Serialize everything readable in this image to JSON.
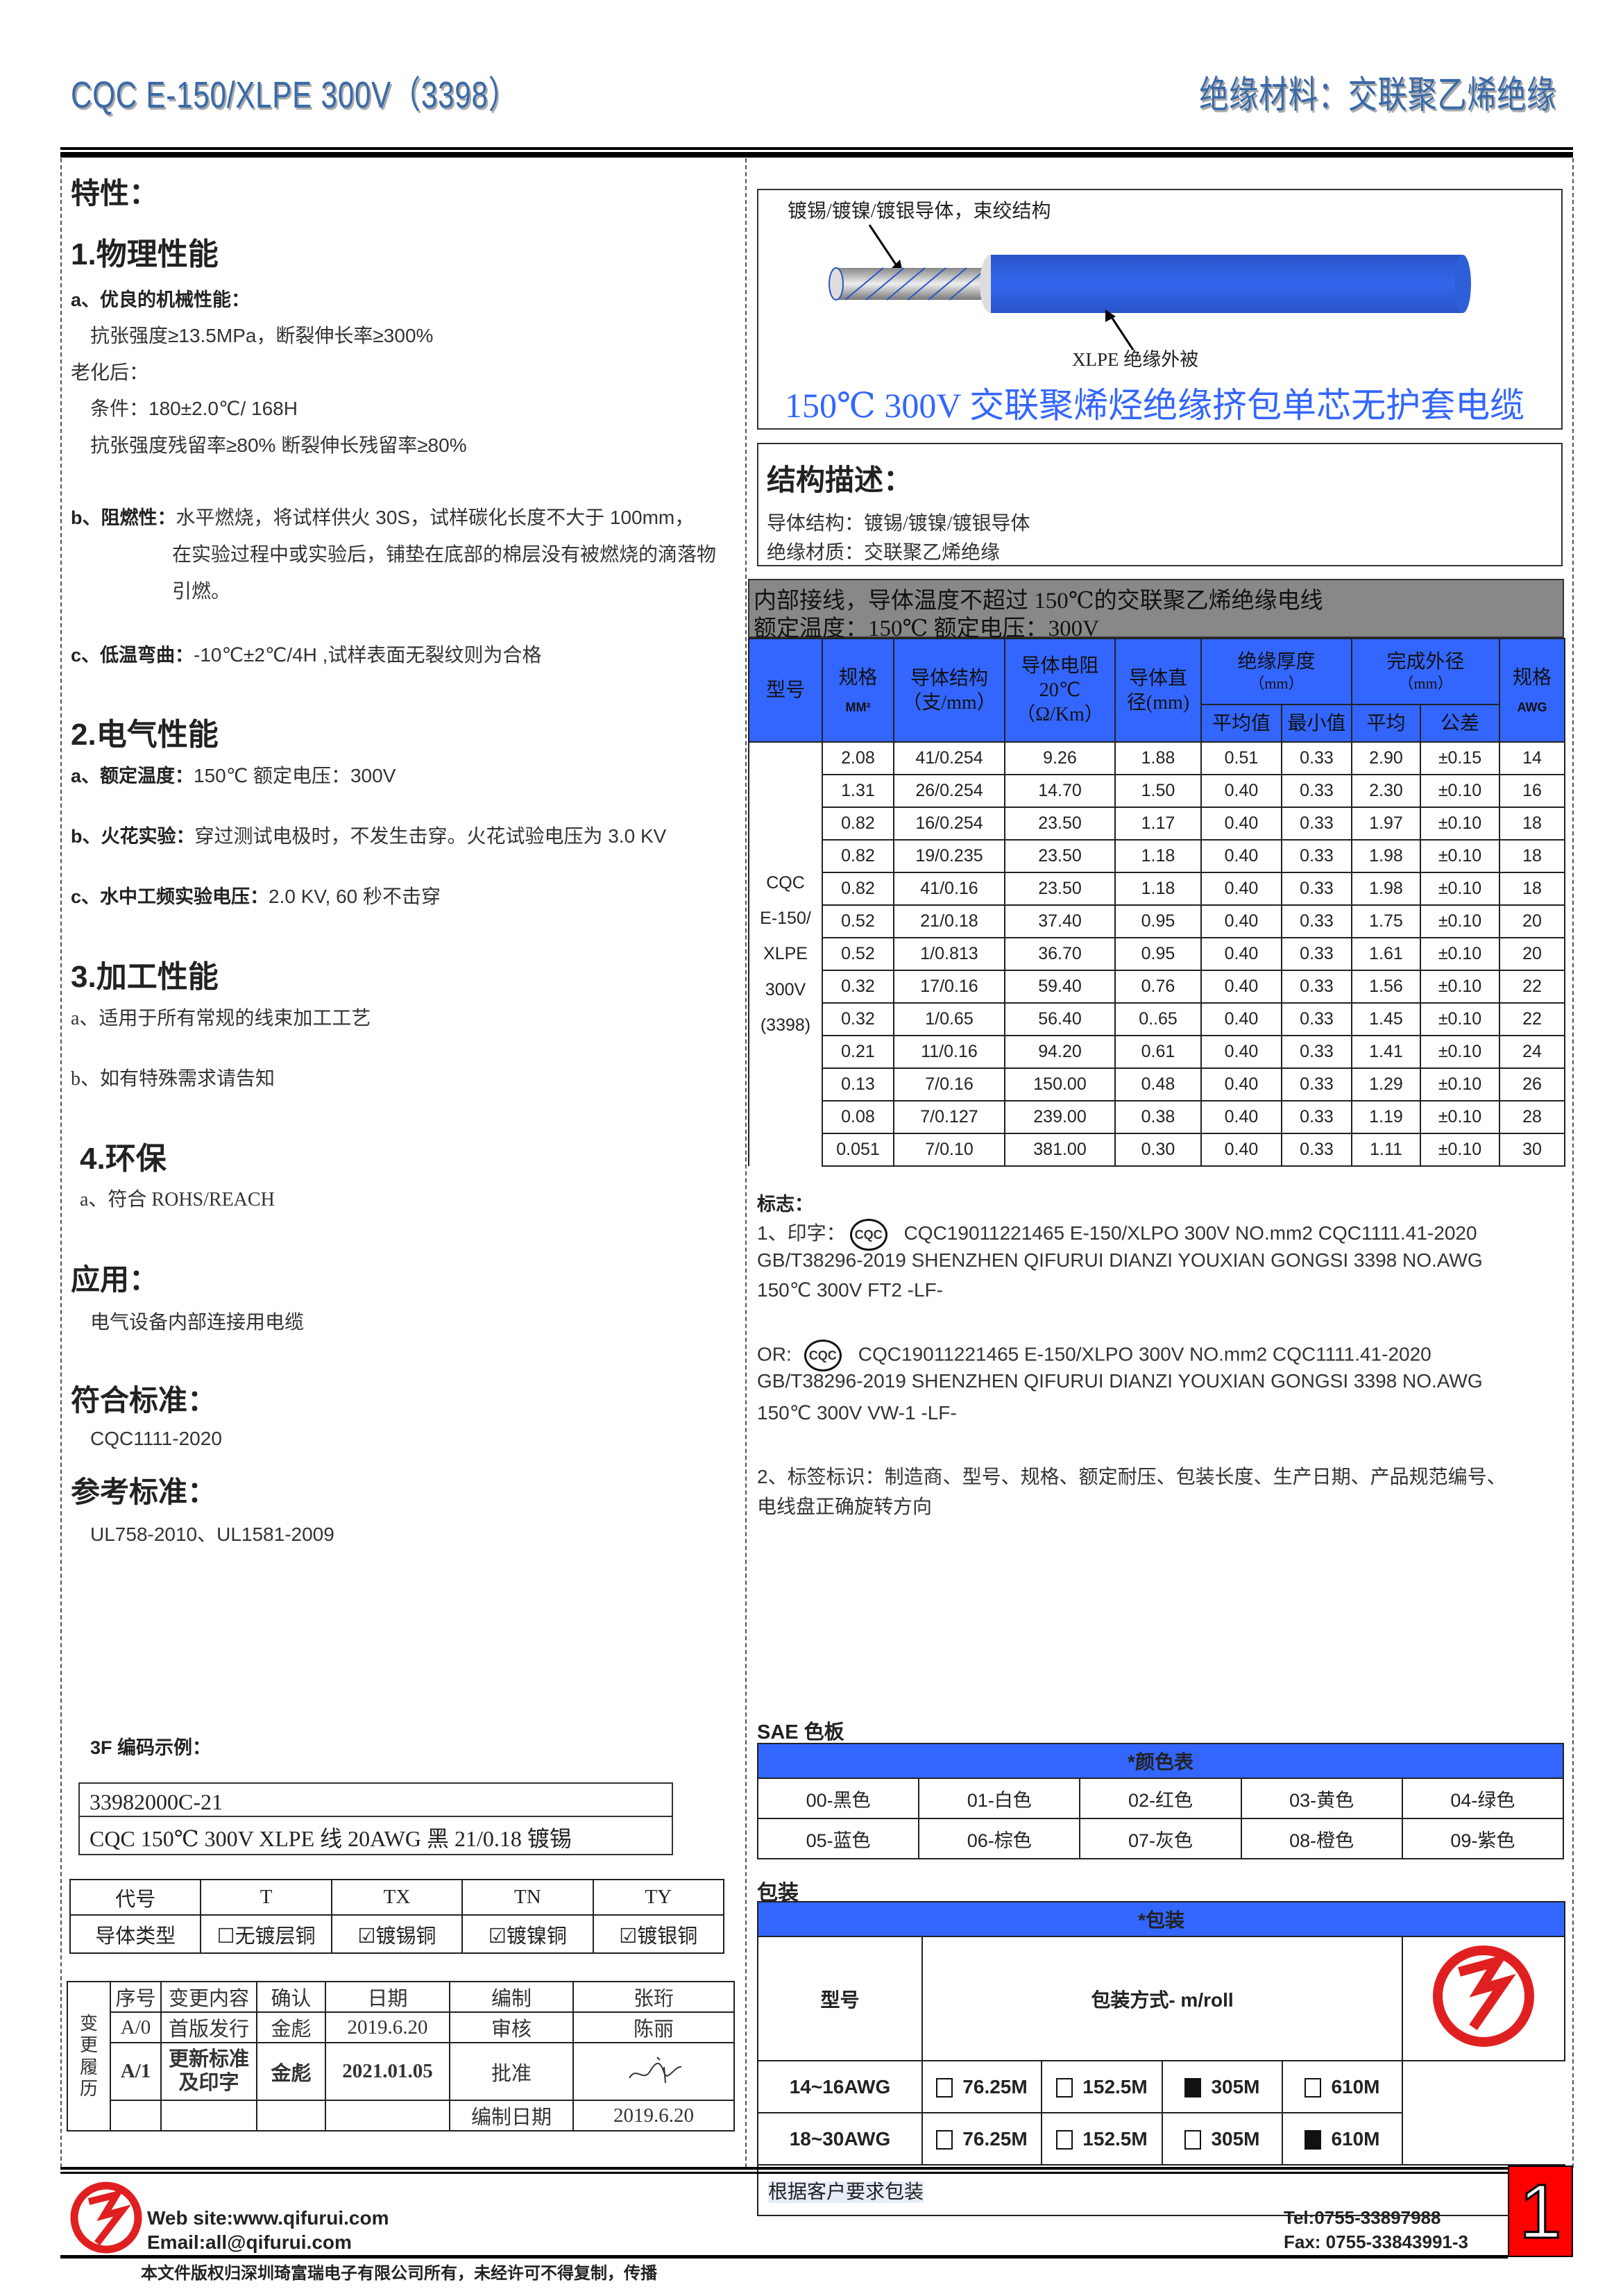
{
  "header": {
    "title": "CQC E-150/XLPE 300V（3398）",
    "category": "绝缘材料：交联聚乙烯绝缘"
  },
  "features": {
    "heading": "特性：",
    "physical": {
      "title": "1.物理性能",
      "a_label": "a、优良的机械性能：",
      "a_line1": "抗张强度≥13.5MPa，断裂伸长率≥300%",
      "aging_label": "老化后：",
      "aging_cond": "条件：180±2.0℃/ 168H",
      "aging_result": "抗张强度残留率≥80%  断裂伸长残留率≥80%",
      "b_label": "b、阻燃性：",
      "b_line1": "水平燃烧，将试样供火 30S，试样碳化长度不大于 100mm，",
      "b_line2": "在实验过程中或实验后，铺垫在底部的棉层没有被燃烧的滴落物",
      "b_line3": "引燃。",
      "c_label": "c、低温弯曲：",
      "c_text": "-10℃±2℃/4H ,试样表面无裂纹则为合格"
    },
    "electrical": {
      "title": "2.电气性能",
      "a_label": "a、额定温度：",
      "a_text": "150℃    额定电压：300V",
      "b_label": "b、火花实验：",
      "b_text": "穿过测试电极时，不发生击穿。火花试验电压为 3.0 KV",
      "c_label": "c、水中工频实验电压：",
      "c_text": "2.0 KV, 60 秒不击穿"
    },
    "processing": {
      "title": "3.加工性能",
      "a": "a、适用于所有常规的线束加工工艺",
      "b": "b、如有特殊需求请告知"
    },
    "env": {
      "title": "4.环保",
      "a": "a、符合 ROHS/REACH"
    }
  },
  "application": {
    "title": "应用：",
    "text": "电气设备内部连接用电缆"
  },
  "standard": {
    "title": "符合标准：",
    "text": "CQC1111-2020"
  },
  "reference": {
    "title": "参考标准：",
    "text": "UL758-2010、UL1581-2009"
  },
  "code_example": {
    "title": "3F 编码示例：",
    "code": "33982000C-21",
    "desc": "CQC 150℃  300V XLPE 线    20AWG  黑  21/0.18 镀锡"
  },
  "conductor_table": {
    "headers": [
      "代号",
      "T",
      "TX",
      "TN",
      "TY"
    ],
    "row_label": "导体类型",
    "cells": [
      {
        "label": "无镀层铜",
        "checked": false
      },
      {
        "label": "镀锡铜",
        "checked": true
      },
      {
        "label": "镀镍铜",
        "checked": true
      },
      {
        "label": "镀银铜",
        "checked": true
      }
    ]
  },
  "revision": {
    "side_label": "变更履历",
    "headers": [
      "序号",
      "变更内容",
      "确认",
      "日期",
      "编制",
      "张珩"
    ],
    "row1": [
      "A/0",
      "首版发行",
      "金彪",
      "2019.6.20",
      "审核",
      "陈丽"
    ],
    "row2": [
      "A/1",
      "更新标准及印字",
      "金彪",
      "2021.01.05",
      "批准"
    ],
    "footer_label": "编制日期",
    "footer_value": "2019.6.20"
  },
  "diagram": {
    "conductor_label": "镀锡/镀镍/镀银导体，束绞结构",
    "insulation_label": "XLPE  绝缘外被",
    "title": "150℃  300V 交联聚烯烃绝缘挤包单芯无护套电缆",
    "jacket_color": "#2f5fd8"
  },
  "structure": {
    "title": "结构描述：",
    "conductor": "导体结构：镀锡/镀镍/镀银导体",
    "insulation": "绝缘材质：交联聚乙烯绝缘"
  },
  "spec": {
    "banner1": "内部接线，导体温度不超过 150℃的交联聚乙烯绝缘电线",
    "banner2": "额定温度：150℃  额定电压：300V",
    "h_model": "型号",
    "h_size": "规格",
    "h_size_unit": "MM²",
    "h_struct": "导体结构",
    "h_struct_unit": "（支/mm）",
    "h_res": "导体电阻",
    "h_res_temp": "20℃",
    "h_res_unit": "（Ω/Km）",
    "h_dia": "导体直",
    "h_dia2": "径(mm)",
    "h_ins": "绝缘厚度",
    "h_ins_unit": "（mm）",
    "h_od": "完成外径",
    "h_od_unit": "（mm）",
    "h_awg": "规格",
    "h_awg_unit": "AWG",
    "h_avg": "平均值",
    "h_min": "最小值",
    "h_od_avg": "平均",
    "h_tol": "公差",
    "model_lines": [
      "CQC",
      "E-150/",
      "XLPE",
      "300V",
      "(3398)"
    ],
    "rows": [
      [
        "2.08",
        "41/0.254",
        "9.26",
        "1.88",
        "0.51",
        "0.33",
        "2.90",
        "±0.15",
        "14"
      ],
      [
        "1.31",
        "26/0.254",
        "14.70",
        "1.50",
        "0.40",
        "0.33",
        "2.30",
        "±0.10",
        "16"
      ],
      [
        "0.82",
        "16/0.254",
        "23.50",
        "1.17",
        "0.40",
        "0.33",
        "1.97",
        "±0.10",
        "18"
      ],
      [
        "0.82",
        "19/0.235",
        "23.50",
        "1.18",
        "0.40",
        "0.33",
        "1.98",
        "±0.10",
        "18"
      ],
      [
        "0.82",
        "41/0.16",
        "23.50",
        "1.18",
        "0.40",
        "0.33",
        "1.98",
        "±0.10",
        "18"
      ],
      [
        "0.52",
        "21/0.18",
        "37.40",
        "0.95",
        "0.40",
        "0.33",
        "1.75",
        "±0.10",
        "20"
      ],
      [
        "0.52",
        "1/0.813",
        "36.70",
        "0.95",
        "0.40",
        "0.33",
        "1.61",
        "±0.10",
        "20"
      ],
      [
        "0.32",
        "17/0.16",
        "59.40",
        "0.76",
        "0.40",
        "0.33",
        "1.56",
        "±0.10",
        "22"
      ],
      [
        "0.32",
        "1/0.65",
        "56.40",
        "0..65",
        "0.40",
        "0.33",
        "1.45",
        "±0.10",
        "22"
      ],
      [
        "0.21",
        "11/0.16",
        "94.20",
        "0.61",
        "0.40",
        "0.33",
        "1.41",
        "±0.10",
        "24"
      ],
      [
        "0.13",
        "7/0.16",
        "150.00",
        "0.48",
        "0.40",
        "0.33",
        "1.29",
        "±0.10",
        "26"
      ],
      [
        "0.08",
        "7/0.127",
        "239.00",
        "0.38",
        "0.40",
        "0.33",
        "1.19",
        "±0.10",
        "28"
      ],
      [
        "0.051",
        "7/0.10",
        "381.00",
        "0.30",
        "0.40",
        "0.33",
        "1.11",
        "±0.10",
        "30"
      ]
    ]
  },
  "marking": {
    "title": "标志：",
    "l1_prefix": "1、印字：",
    "l1": "CQC19011221465  E-150/XLPO   300V   NO.mm2   CQC1111.41-2020",
    "l2": "GB/T38296-2019 SHENZHEN QIFURUI DIANZI YOUXIAN GONGSI       3398 NO.AWG",
    "l3": "150℃  300V FT2 -LF-",
    "or_prefix": "OR:",
    "or1": "CQC19011221465    E-150/XLPO    300V    NO.mm2    CQC1111.41-2020",
    "or2": "GB/T38296-2019 SHENZHEN QIFURUI DIANZI YOUXIAN GONGSI       3398 NO.AWG",
    "or3": "150℃  300V VW-1 -LF-",
    "cqc_logo": "CQC",
    "l4": "2、标签标识：制造商、型号、规格、额定耐压、包装长度、生产日期、产品规范编号、",
    "l5": "电线盘正确旋转方向"
  },
  "colors": {
    "title": "SAE 色板",
    "header": "*颜色表",
    "items": [
      "00-黑色",
      "01-白色",
      "02-红色",
      "03-黄色",
      "04-绿色",
      "05-蓝色",
      "06-棕色",
      "07-灰色",
      "08-橙色",
      "09-紫色"
    ]
  },
  "packaging": {
    "title": "包装",
    "header": "*包装",
    "col_model": "型号",
    "col_method": "包装方式- m/roll",
    "rows": [
      {
        "model": "14~16AWG",
        "options": [
          {
            "label": "76.25M",
            "checked": false
          },
          {
            "label": "152.5M",
            "checked": false
          },
          {
            "label": "305M",
            "checked": true
          },
          {
            "label": "610M",
            "checked": false
          }
        ]
      },
      {
        "model": "18~30AWG",
        "options": [
          {
            "label": "76.25M",
            "checked": false
          },
          {
            "label": "152.5M",
            "checked": false
          },
          {
            "label": "305M",
            "checked": false
          },
          {
            "label": "610M",
            "checked": true
          }
        ]
      }
    ],
    "note": "根据客户要求包装"
  },
  "footer": {
    "website": "Web site:www.qifurui.com",
    "email": "Email:all@qifurui.com",
    "tel": "Tel:0755-33897988",
    "fax": "Fax: 0755-33843991-3",
    "copyright": "本文件版权归深圳琦富瑞电子有限公司所有，未经许可不得复制，传播",
    "page": "1",
    "brand_red": "#e02020"
  }
}
